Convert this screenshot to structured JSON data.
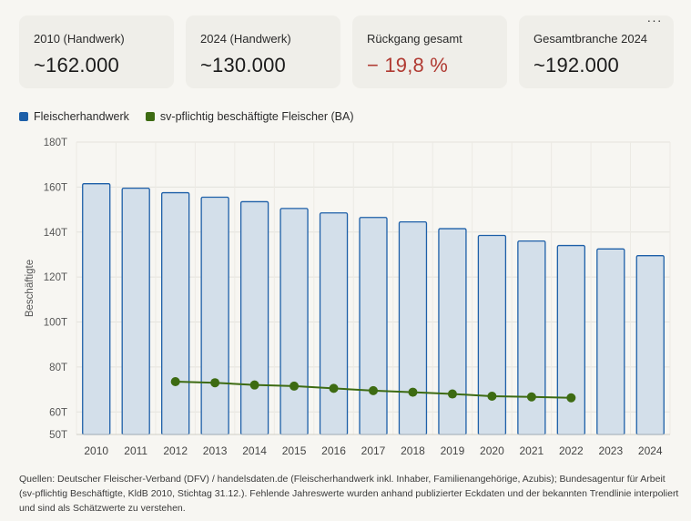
{
  "cards": [
    {
      "label": "2010 (Handwerk)",
      "value": "~162.000",
      "negative": false
    },
    {
      "label": "2024 (Handwerk)",
      "value": "~130.000",
      "negative": false
    },
    {
      "label": "Rückgang gesamt",
      "value": "− 19,8 %",
      "negative": true
    },
    {
      "label": "Gesamtbranche 2024",
      "value": "~192.000",
      "negative": false
    }
  ],
  "more_button": "···",
  "legend": [
    {
      "label": "Fleischerhandwerk",
      "color": "#1d5fa8"
    },
    {
      "label": "sv-pflichtig beschäftigte Fleischer (BA)",
      "color": "#3d6b12"
    }
  ],
  "chart_data": {
    "type": "bar",
    "categories": [
      "2010",
      "2011",
      "2012",
      "2013",
      "2014",
      "2015",
      "2016",
      "2017",
      "2018",
      "2019",
      "2020",
      "2021",
      "2022",
      "2023",
      "2024"
    ],
    "series": [
      {
        "name": "Fleischerhandwerk",
        "type": "bar",
        "color": "#1d5fa8",
        "fill": "#d3dfea",
        "values": [
          161500,
          159500,
          157500,
          155500,
          153500,
          150500,
          148500,
          146500,
          144500,
          141500,
          138500,
          136000,
          134000,
          132500,
          129500
        ]
      },
      {
        "name": "sv-pflichtig beschäftigte Fleischer (BA)",
        "type": "line",
        "color": "#3d6b12",
        "values": [
          null,
          null,
          73500,
          73000,
          72000,
          71500,
          70500,
          69500,
          68800,
          68000,
          67000,
          66700,
          66300,
          null,
          null
        ]
      }
    ],
    "ylabel": "Beschäftigte",
    "ylim": [
      50000,
      180000
    ],
    "yticks": [
      {
        "value": 180000,
        "label": "180T"
      },
      {
        "value": 160000,
        "label": "160T"
      },
      {
        "value": 140000,
        "label": "140T"
      },
      {
        "value": 120000,
        "label": "120T"
      },
      {
        "value": 100000,
        "label": "100T"
      },
      {
        "value": 80000,
        "label": "80T"
      },
      {
        "value": 60000,
        "label": "60T"
      },
      {
        "value": 50000,
        "label": "50T"
      }
    ],
    "grid": true
  },
  "footnote": "Quellen: Deutscher Fleischer-Verband (DFV) / handelsdaten.de (Fleischerhandwerk inkl. Inhaber, Familienangehörige, Azubis); Bundesagentur für Arbeit (sv-pflichtig Beschäftigte, KldB 2010, Stichtag 31.12.). Fehlende Jahreswerte wurden anhand publizierter Eckdaten und der bekannten Trendlinie interpoliert und sind als Schätzwerte zu verstehen."
}
